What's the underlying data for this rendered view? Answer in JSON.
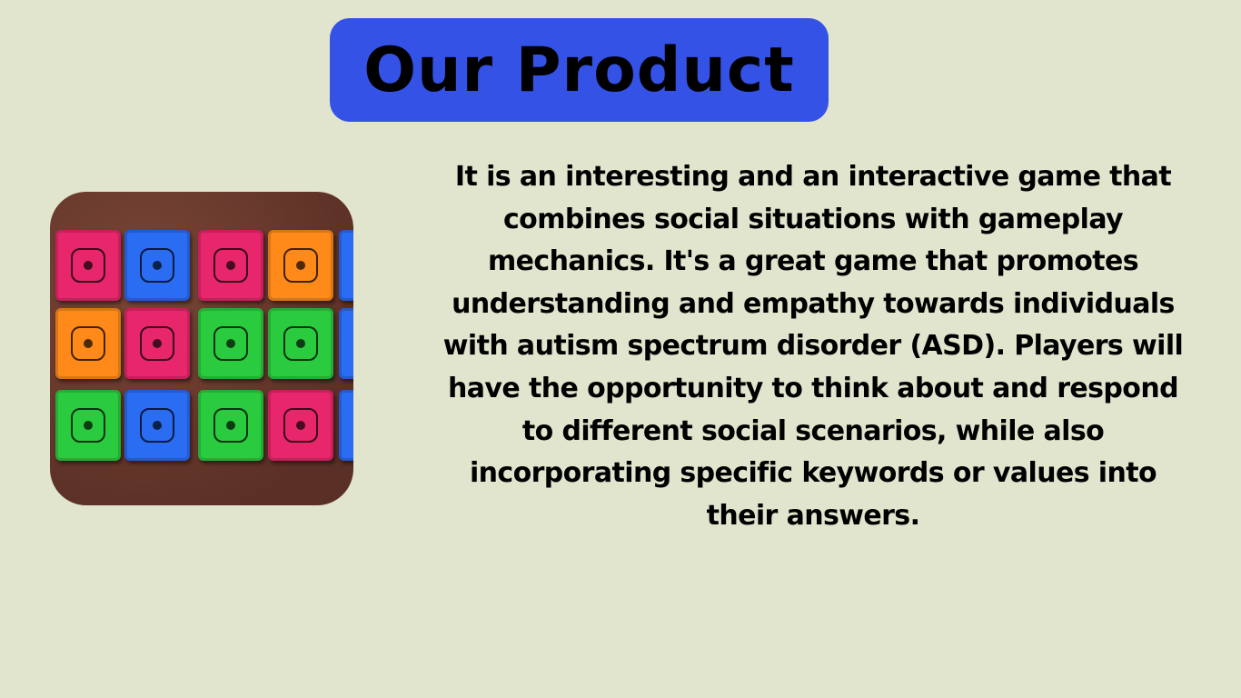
{
  "title": "Our Product",
  "description_lines": [
    "It is an interesting and an interactive game that",
    "combines social situations with gameplay",
    "mechanics. It's a great game that promotes",
    "understanding and empathy towards individuals",
    "with autism spectrum disorder (ASD). Players will",
    "have the opportunity to think about and respond",
    "to different social scenarios, while also",
    "incorporating specific keywords or values into",
    "their answers."
  ],
  "colors": {
    "background": "#e1e5cd",
    "title_box": "#3452e6",
    "tile_pink": "#e8266c",
    "tile_blue": "#2a6cf2",
    "tile_orange": "#ff8a1a",
    "tile_green": "#2bcb3f"
  },
  "photo": {
    "subject": "game-tiles-photo",
    "tile_grid": [
      [
        "pink",
        "blue",
        "pink",
        "orange",
        "blue"
      ],
      [
        "orange",
        "pink",
        "green",
        "green",
        "blue"
      ],
      [
        "green",
        "blue",
        "green",
        "pink",
        "blue"
      ]
    ]
  }
}
